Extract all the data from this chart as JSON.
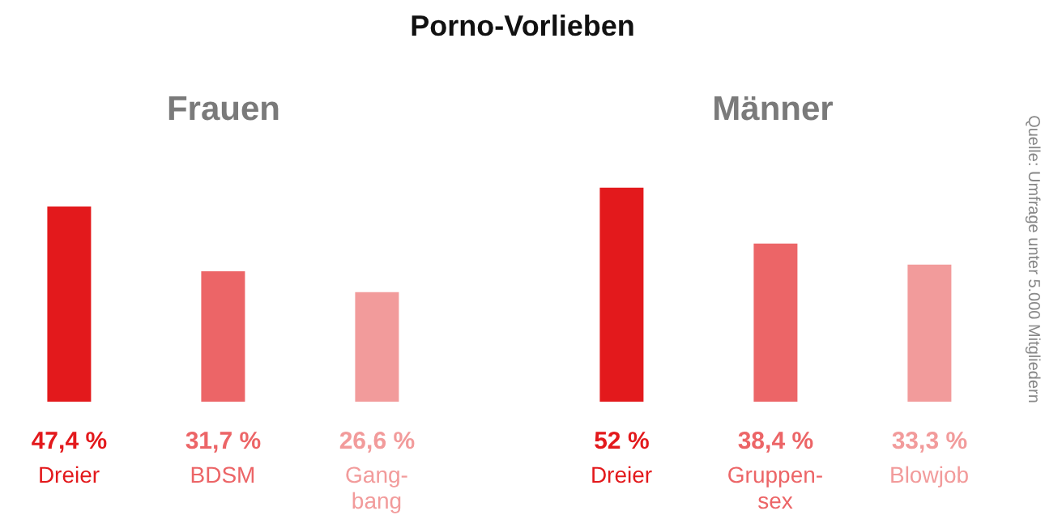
{
  "chart_data": [
    {
      "type": "bar",
      "title": "Porno-Vorlieben",
      "subtitle": "Frauen",
      "categories": [
        "Dreier",
        "BDSM",
        "Gang-bang"
      ],
      "values": [
        47.4,
        31.7,
        26.6
      ],
      "value_labels": [
        "47,4 %",
        "31,7 %",
        "26,6 %"
      ],
      "colors": [
        "#e3191c",
        "#ec6567",
        "#f29b9b"
      ]
    },
    {
      "type": "bar",
      "subtitle": "Männer",
      "categories": [
        "Dreier",
        "Gruppen-sex",
        "Blowjob"
      ],
      "values": [
        52,
        38.4,
        33.3
      ],
      "value_labels": [
        "52 %",
        "38,4 %",
        "33,3 %"
      ],
      "colors": [
        "#e3191c",
        "#ec6567",
        "#f29b9b"
      ],
      "annotations": [
        "Quelle: Umfrage unter 5.000 Mitgliedern"
      ]
    }
  ]
}
